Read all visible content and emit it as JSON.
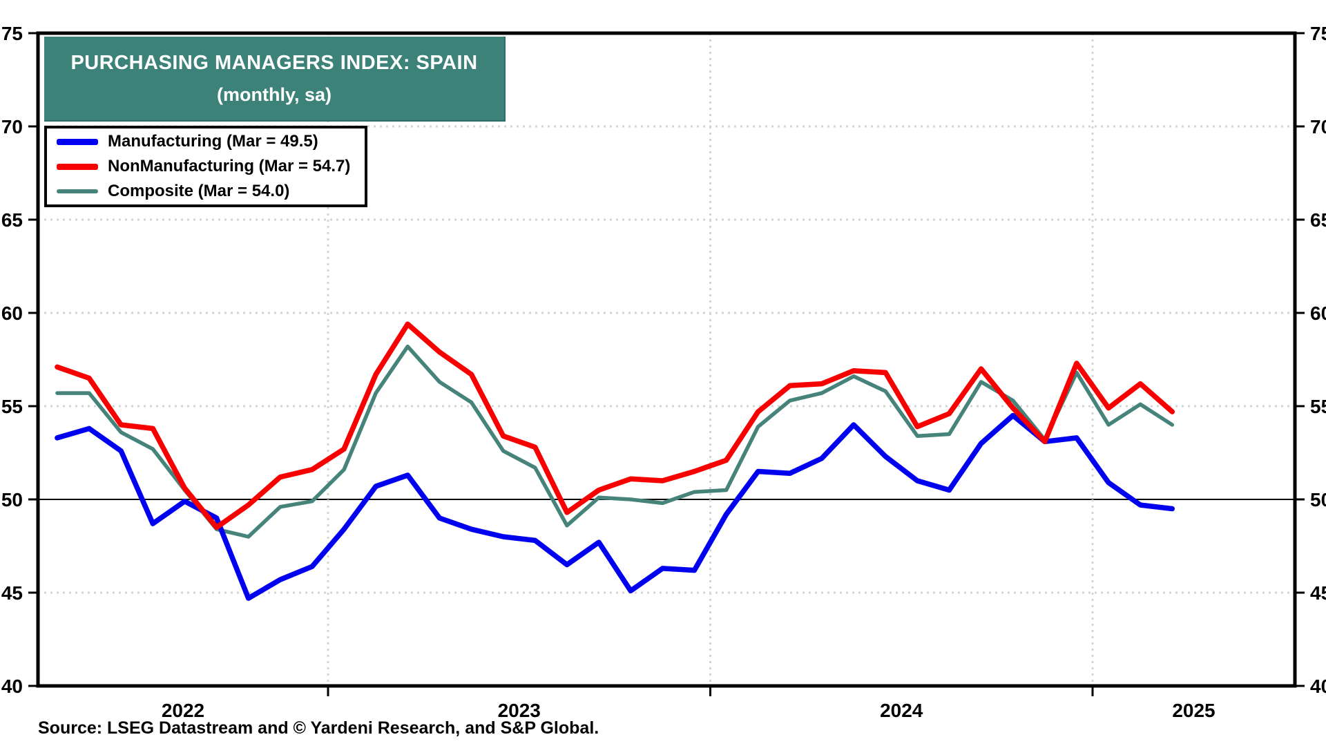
{
  "title": {
    "line1": "PURCHASING MANAGERS INDEX: SPAIN",
    "line2": "(monthly, sa)",
    "bg_color": "#3D8279",
    "text_color": "#FFFFFF"
  },
  "legend": {
    "items": [
      {
        "label": "Manufacturing (Mar = 49.5)",
        "color": "#0000F0",
        "thickness": 9
      },
      {
        "label": "NonManufacturing (Mar = 54.7)",
        "color": "#F80000",
        "thickness": 9
      },
      {
        "label": "Composite (Mar = 54.0)",
        "color": "#45837B",
        "thickness": 6
      }
    ]
  },
  "source_note": "Source: LSEG Datastream and © Yardeni Research, and S&P Global.",
  "chart_data": {
    "type": "line",
    "title": "PURCHASING MANAGERS INDEX: SPAIN (monthly, sa)",
    "ylim": [
      40,
      75
    ],
    "y_ticks": [
      75,
      70,
      65,
      60,
      55,
      50,
      45,
      40
    ],
    "reference_line": 50,
    "grid": "dotted horizontal every 5 units, dotted vertical at each January, solid thin line at 50",
    "legend_position": "top-left",
    "x_year_labels": [
      "2022",
      "2023",
      "2024",
      "2025"
    ],
    "x": [
      "Apr 2022",
      "May 2022",
      "Jun 2022",
      "Jul 2022",
      "Aug 2022",
      "Sep 2022",
      "Oct 2022",
      "Nov 2022",
      "Dec 2022",
      "Jan 2023",
      "Feb 2023",
      "Mar 2023",
      "Apr 2023",
      "May 2023",
      "Jun 2023",
      "Jul 2023",
      "Aug 2023",
      "Sep 2023",
      "Oct 2023",
      "Nov 2023",
      "Dec 2023",
      "Jan 2024",
      "Feb 2024",
      "Mar 2024",
      "Apr 2024",
      "May 2024",
      "Jun 2024",
      "Jul 2024",
      "Aug 2024",
      "Sep 2024",
      "Oct 2024",
      "Nov 2024",
      "Dec 2024",
      "Jan 2025",
      "Feb 2025",
      "Mar 2025"
    ],
    "series": [
      {
        "name": "Manufacturing",
        "color": "#0000F0",
        "stroke_width": 7.5,
        "values": [
          53.3,
          53.8,
          52.6,
          48.7,
          49.9,
          49.0,
          44.7,
          45.7,
          46.4,
          48.4,
          50.7,
          51.3,
          49.0,
          48.4,
          48.0,
          47.8,
          46.5,
          47.7,
          45.1,
          46.3,
          46.2,
          49.2,
          51.5,
          51.4,
          52.2,
          54.0,
          52.3,
          51.0,
          50.5,
          53.0,
          54.5,
          53.1,
          53.3,
          50.9,
          49.7,
          49.5
        ]
      },
      {
        "name": "NonManufacturing",
        "color": "#F80000",
        "stroke_width": 7.5,
        "values": [
          57.1,
          56.5,
          54.0,
          53.8,
          50.6,
          48.5,
          49.7,
          51.2,
          51.6,
          52.7,
          56.7,
          59.4,
          57.9,
          56.7,
          53.4,
          52.8,
          49.3,
          50.5,
          51.1,
          51.0,
          51.5,
          52.1,
          54.7,
          56.1,
          56.2,
          56.9,
          56.8,
          53.9,
          54.6,
          57.0,
          54.9,
          53.1,
          57.3,
          54.9,
          56.2,
          54.7
        ]
      },
      {
        "name": "Composite",
        "color": "#45837B",
        "stroke_width": 5.5,
        "values": [
          55.7,
          55.7,
          53.6,
          52.7,
          50.5,
          48.4,
          48.0,
          49.6,
          49.9,
          51.6,
          55.7,
          58.2,
          56.3,
          55.2,
          52.6,
          51.7,
          48.6,
          50.1,
          50.0,
          49.8,
          50.4,
          50.5,
          53.9,
          55.3,
          55.7,
          56.6,
          55.8,
          53.4,
          53.5,
          56.3,
          55.3,
          53.2,
          56.8,
          54.0,
          55.1,
          54.0
        ]
      }
    ]
  }
}
